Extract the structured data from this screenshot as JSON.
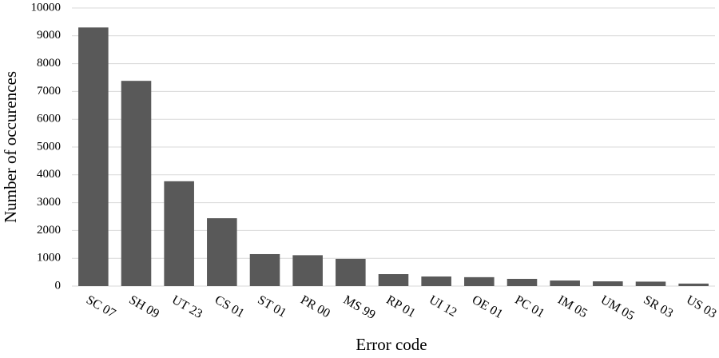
{
  "chart_data": {
    "type": "bar",
    "x_label": "Error code",
    "y_label": "Number of occurences",
    "categories": [
      "SC 07",
      "SH 09",
      "UT 23",
      "CS 01",
      "ST 01",
      "PR 00",
      "MS 99",
      "RP 01",
      "UI 12",
      "OE 01",
      "PC 01",
      "IM 05",
      "UM 05",
      "SR 03",
      "US 03"
    ],
    "values": [
      9300,
      7380,
      3770,
      2440,
      1150,
      1110,
      980,
      430,
      345,
      320,
      260,
      200,
      170,
      160,
      90
    ],
    "color": "#595959",
    "ylim": [
      0,
      10000
    ],
    "yticks": [
      0,
      1000,
      2000,
      3000,
      4000,
      5000,
      6000,
      7000,
      8000,
      9000,
      10000
    ],
    "grid": true
  }
}
